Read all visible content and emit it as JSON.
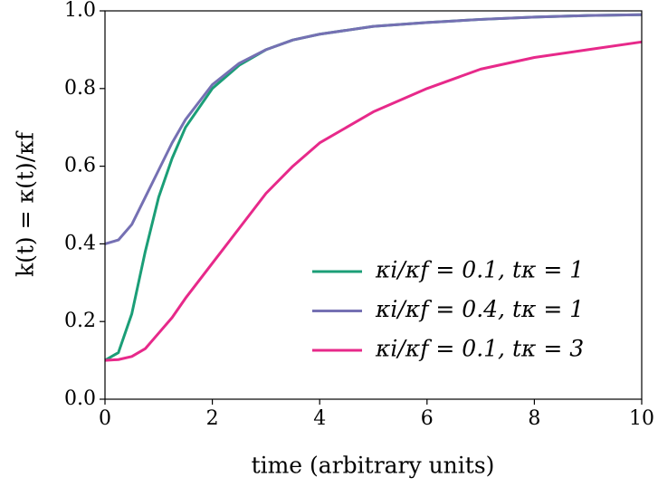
{
  "chart_data": {
    "type": "line",
    "xlabel": "time (arbitrary units)",
    "ylabel": "k(t) = κ(t)/κf",
    "x": [
      0,
      0.25,
      0.5,
      0.75,
      1,
      1.25,
      1.5,
      2,
      2.5,
      3,
      3.5,
      4,
      5,
      6,
      7,
      8,
      9,
      10
    ],
    "series": [
      {
        "name": "κi/κf = 0.1,  tκ = 1",
        "color": "#1b9e77",
        "values": [
          0.1,
          0.12,
          0.22,
          0.38,
          0.52,
          0.62,
          0.7,
          0.8,
          0.86,
          0.9,
          0.925,
          0.94,
          0.96,
          0.97,
          0.978,
          0.984,
          0.988,
          0.99
        ]
      },
      {
        "name": "κi/κf = 0.4,  tκ = 1",
        "color": "#7570b3",
        "values": [
          0.4,
          0.41,
          0.45,
          0.52,
          0.59,
          0.66,
          0.72,
          0.81,
          0.865,
          0.9,
          0.925,
          0.94,
          0.96,
          0.97,
          0.978,
          0.984,
          0.988,
          0.99
        ]
      },
      {
        "name": "κi/κf = 0.1,  tκ = 3",
        "color": "#e7298a",
        "values": [
          0.1,
          0.102,
          0.11,
          0.13,
          0.17,
          0.21,
          0.26,
          0.35,
          0.44,
          0.53,
          0.6,
          0.66,
          0.74,
          0.8,
          0.85,
          0.88,
          0.9,
          0.92
        ]
      }
    ],
    "xlim": [
      0,
      10
    ],
    "xticks": [
      0,
      2,
      4,
      6,
      8,
      10
    ],
    "ylim": [
      0,
      1
    ],
    "yticks": [
      {
        "value": 0,
        "label": "0.0"
      },
      0.2,
      0.4,
      0.6,
      0.8,
      {
        "value": 1,
        "label": "1.0"
      }
    ],
    "legend": "lower right",
    "grid": false
  }
}
